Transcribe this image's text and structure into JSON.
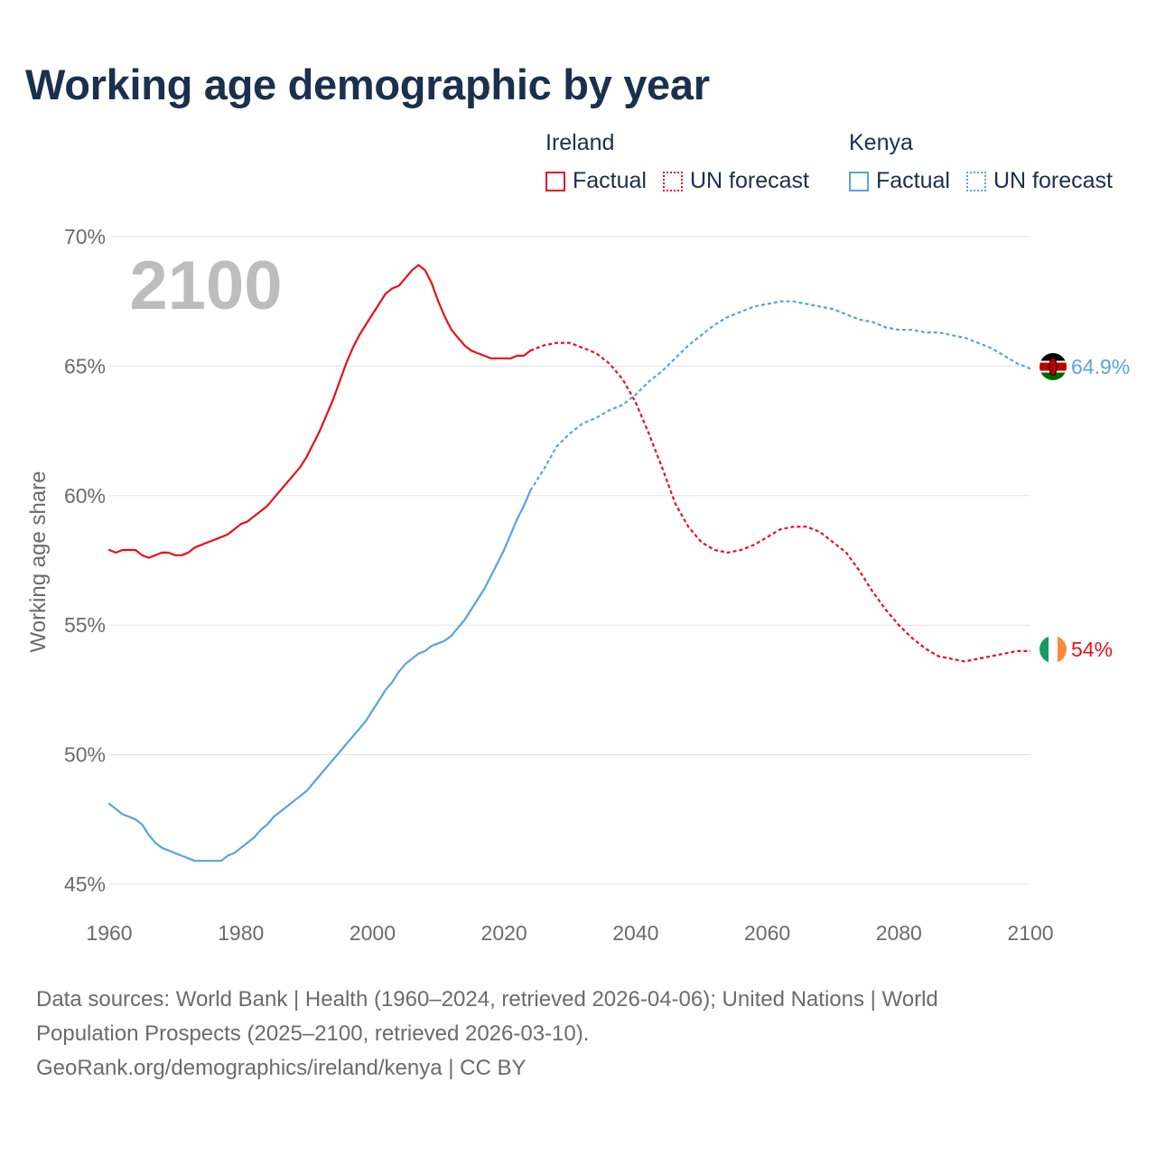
{
  "title": "Working age demographic by year",
  "legend": {
    "groups": [
      {
        "name": "Ireland",
        "factual_label": "Factual",
        "forecast_label": "UN forecast",
        "color": "#e8101a"
      },
      {
        "name": "Kenya",
        "factual_label": "Factual",
        "forecast_label": "UN forecast",
        "color": "#5aa2e0"
      }
    ]
  },
  "year_watermark": "2100",
  "footer": {
    "line1": "Data sources: World Bank | Health (1960–2024, retrieved 2026-04-06); United Nations | World",
    "line2": "Population Prospects (2025–2100, retrieved 2026-03-10).",
    "line3": "GeoRank.org/demographics/ireland/kenya | CC BY"
  },
  "chart_data": {
    "type": "line",
    "title": "Working age demographic by year",
    "xlabel": "",
    "ylabel": "Working age share",
    "xlim": [
      1960,
      2100
    ],
    "ylim": [
      45,
      70
    ],
    "x_ticks": [
      1960,
      1980,
      2000,
      2020,
      2040,
      2060,
      2080,
      2100
    ],
    "x_tick_labels": [
      "1960",
      "1980",
      "2000",
      "2020",
      "2040",
      "2060",
      "2080",
      "2100"
    ],
    "y_ticks": [
      45,
      50,
      55,
      60,
      65,
      70
    ],
    "y_tick_labels": [
      "45%",
      "50%",
      "55%",
      "60%",
      "65%",
      "70%"
    ],
    "grid": true,
    "series": [
      {
        "name": "Ireland",
        "color": "#e8101a",
        "end_label": "54%",
        "factual": {
          "x": [
            1960,
            1961,
            1962,
            1963,
            1964,
            1965,
            1966,
            1967,
            1968,
            1969,
            1970,
            1971,
            1972,
            1973,
            1974,
            1975,
            1976,
            1977,
            1978,
            1979,
            1980,
            1981,
            1982,
            1983,
            1984,
            1985,
            1986,
            1987,
            1988,
            1989,
            1990,
            1991,
            1992,
            1993,
            1994,
            1995,
            1996,
            1997,
            1998,
            1999,
            2000,
            2001,
            2002,
            2003,
            2004,
            2005,
            2006,
            2007,
            2008,
            2009,
            2010,
            2011,
            2012,
            2013,
            2014,
            2015,
            2016,
            2017,
            2018,
            2019,
            2020,
            2021,
            2022,
            2023,
            2024
          ],
          "y": [
            57.9,
            57.8,
            57.9,
            57.9,
            57.9,
            57.7,
            57.6,
            57.7,
            57.8,
            57.8,
            57.7,
            57.7,
            57.8,
            58.0,
            58.1,
            58.2,
            58.3,
            58.4,
            58.5,
            58.7,
            58.9,
            59.0,
            59.2,
            59.4,
            59.6,
            59.9,
            60.2,
            60.5,
            60.8,
            61.1,
            61.5,
            62.0,
            62.5,
            63.1,
            63.7,
            64.4,
            65.1,
            65.7,
            66.2,
            66.6,
            67.0,
            67.4,
            67.8,
            68.0,
            68.1,
            68.4,
            68.7,
            68.9,
            68.7,
            68.2,
            67.5,
            66.9,
            66.4,
            66.1,
            65.8,
            65.6,
            65.5,
            65.4,
            65.3,
            65.3,
            65.3,
            65.3,
            65.4,
            65.4,
            65.6
          ]
        },
        "forecast": {
          "x": [
            2024,
            2026,
            2028,
            2030,
            2032,
            2034,
            2036,
            2038,
            2040,
            2042,
            2044,
            2046,
            2048,
            2050,
            2052,
            2054,
            2056,
            2058,
            2060,
            2062,
            2064,
            2066,
            2068,
            2070,
            2072,
            2074,
            2076,
            2078,
            2080,
            2082,
            2084,
            2086,
            2088,
            2090,
            2092,
            2094,
            2096,
            2098,
            2100
          ],
          "y": [
            65.6,
            65.8,
            65.9,
            65.9,
            65.7,
            65.5,
            65.1,
            64.5,
            63.6,
            62.4,
            61.1,
            59.7,
            58.8,
            58.2,
            57.9,
            57.8,
            57.9,
            58.1,
            58.4,
            58.7,
            58.8,
            58.8,
            58.6,
            58.2,
            57.8,
            57.1,
            56.3,
            55.6,
            55.0,
            54.5,
            54.1,
            53.8,
            53.7,
            53.6,
            53.7,
            53.8,
            53.9,
            54.0,
            54.0
          ]
        }
      },
      {
        "name": "Kenya",
        "color": "#5aa2e0",
        "end_label": "64.9%",
        "factual": {
          "x": [
            1960,
            1961,
            1962,
            1963,
            1964,
            1965,
            1966,
            1967,
            1968,
            1969,
            1970,
            1971,
            1972,
            1973,
            1974,
            1975,
            1976,
            1977,
            1978,
            1979,
            1980,
            1981,
            1982,
            1983,
            1984,
            1985,
            1986,
            1987,
            1988,
            1989,
            1990,
            1991,
            1992,
            1993,
            1994,
            1995,
            1996,
            1997,
            1998,
            1999,
            2000,
            2001,
            2002,
            2003,
            2004,
            2005,
            2006,
            2007,
            2008,
            2009,
            2010,
            2011,
            2012,
            2013,
            2014,
            2015,
            2016,
            2017,
            2018,
            2019,
            2020,
            2021,
            2022,
            2023,
            2024
          ],
          "y": [
            48.1,
            47.9,
            47.7,
            47.6,
            47.5,
            47.3,
            46.9,
            46.6,
            46.4,
            46.3,
            46.2,
            46.1,
            46.0,
            45.9,
            45.9,
            45.9,
            45.9,
            45.9,
            46.1,
            46.2,
            46.4,
            46.6,
            46.8,
            47.1,
            47.3,
            47.6,
            47.8,
            48.0,
            48.2,
            48.4,
            48.6,
            48.9,
            49.2,
            49.5,
            49.8,
            50.1,
            50.4,
            50.7,
            51.0,
            51.3,
            51.7,
            52.1,
            52.5,
            52.8,
            53.2,
            53.5,
            53.7,
            53.9,
            54.0,
            54.2,
            54.3,
            54.4,
            54.6,
            54.9,
            55.2,
            55.6,
            56.0,
            56.4,
            56.9,
            57.4,
            57.9,
            58.5,
            59.1,
            59.6,
            60.2
          ]
        },
        "forecast": {
          "x": [
            2024,
            2026,
            2028,
            2030,
            2032,
            2034,
            2036,
            2038,
            2040,
            2042,
            2044,
            2046,
            2048,
            2050,
            2052,
            2054,
            2056,
            2058,
            2060,
            2062,
            2064,
            2066,
            2068,
            2070,
            2072,
            2074,
            2076,
            2078,
            2080,
            2082,
            2084,
            2086,
            2088,
            2090,
            2092,
            2094,
            2096,
            2098,
            2100
          ],
          "y": [
            60.2,
            61.0,
            61.9,
            62.4,
            62.8,
            63.0,
            63.3,
            63.5,
            63.9,
            64.4,
            64.8,
            65.3,
            65.8,
            66.2,
            66.6,
            66.9,
            67.1,
            67.3,
            67.4,
            67.5,
            67.5,
            67.4,
            67.3,
            67.2,
            67.0,
            66.8,
            66.7,
            66.5,
            66.4,
            66.4,
            66.3,
            66.3,
            66.2,
            66.1,
            65.9,
            65.7,
            65.4,
            65.1,
            64.9
          ]
        }
      }
    ]
  }
}
